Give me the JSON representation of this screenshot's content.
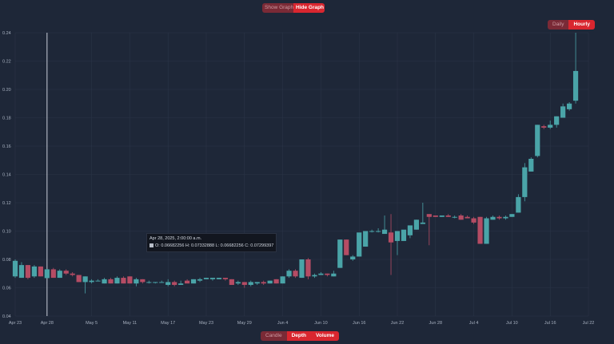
{
  "graph_toggle": {
    "show_label": "Show Graph",
    "hide_label": "Hide Graph",
    "active": "hide"
  },
  "interval_toggle": {
    "daily_label": "Daily",
    "hourly_label": "Hourly",
    "active": "hourly"
  },
  "mode_toggle": {
    "candle_label": "Candle",
    "depth_label": "Depth",
    "volume_label": "Volume"
  },
  "tooltip": {
    "date": "Apr 28, 2025, 2:00:00 a.m.",
    "ohlc": "O: 0.06682256  H: 0.07332888  L: 0.06682256  C: 0.07299397"
  },
  "colors": {
    "background": "#1e2738",
    "up": "#4aa4a8",
    "down": "#b54c64",
    "grid": "#2a3447",
    "accent": "#d9262f"
  },
  "chart_data": {
    "type": "candlestick",
    "ylim": [
      0.04,
      0.24
    ],
    "y_ticks": [
      "0.24",
      "0.22",
      "0.20",
      "0.18",
      "0.16",
      "0.14",
      "0.12",
      "0.10",
      "0.08",
      "0.06",
      "0.04"
    ],
    "y_tick_values": [
      0.24,
      0.22,
      0.2,
      0.18,
      0.16,
      0.14,
      0.12,
      0.1,
      0.08,
      0.06,
      0.04
    ],
    "x_ticks": [
      "Apr 23",
      "Apr 28",
      "May 5",
      "May 11",
      "May 17",
      "May 23",
      "May 29",
      "Jun 4",
      "Jun 10",
      "Jun 16",
      "Jun 22",
      "Jun 28",
      "Jul 4",
      "Jul 10",
      "Jul 16",
      "Jul 22"
    ],
    "x_tick_days": [
      0,
      5,
      12,
      18,
      24,
      30,
      36,
      42,
      48,
      54,
      60,
      66,
      72,
      78,
      84,
      90
    ],
    "day_range": [
      0,
      90
    ],
    "grid": true,
    "crosshair_day": 5,
    "candles": [
      {
        "day": 0,
        "o": 0.068,
        "h": 0.08,
        "l": 0.067,
        "c": 0.079
      },
      {
        "day": 1,
        "o": 0.067,
        "h": 0.078,
        "l": 0.067,
        "c": 0.076
      },
      {
        "day": 2,
        "o": 0.076,
        "h": 0.076,
        "l": 0.066,
        "c": 0.067
      },
      {
        "day": 3,
        "o": 0.068,
        "h": 0.076,
        "l": 0.067,
        "c": 0.075
      },
      {
        "day": 4,
        "o": 0.075,
        "h": 0.075,
        "l": 0.068,
        "c": 0.068
      },
      {
        "day": 5,
        "o": 0.0668,
        "h": 0.0733,
        "l": 0.0668,
        "c": 0.073
      },
      {
        "day": 6,
        "o": 0.073,
        "h": 0.074,
        "l": 0.067,
        "c": 0.067
      },
      {
        "day": 7,
        "o": 0.067,
        "h": 0.073,
        "l": 0.067,
        "c": 0.072
      },
      {
        "day": 8,
        "o": 0.072,
        "h": 0.073,
        "l": 0.069,
        "c": 0.07
      },
      {
        "day": 9,
        "o": 0.07,
        "h": 0.071,
        "l": 0.068,
        "c": 0.069
      },
      {
        "day": 10,
        "o": 0.069,
        "h": 0.069,
        "l": 0.064,
        "c": 0.064
      },
      {
        "day": 11,
        "o": 0.064,
        "h": 0.068,
        "l": 0.056,
        "c": 0.068
      },
      {
        "day": 12,
        "o": 0.064,
        "h": 0.066,
        "l": 0.063,
        "c": 0.065
      },
      {
        "day": 13,
        "o": 0.065,
        "h": 0.066,
        "l": 0.065,
        "c": 0.065
      },
      {
        "day": 14,
        "o": 0.063,
        "h": 0.067,
        "l": 0.063,
        "c": 0.066
      },
      {
        "day": 15,
        "o": 0.066,
        "h": 0.067,
        "l": 0.063,
        "c": 0.063
      },
      {
        "day": 16,
        "o": 0.063,
        "h": 0.068,
        "l": 0.063,
        "c": 0.067
      },
      {
        "day": 17,
        "o": 0.067,
        "h": 0.068,
        "l": 0.063,
        "c": 0.063
      },
      {
        "day": 18,
        "o": 0.068,
        "h": 0.068,
        "l": 0.063,
        "c": 0.063
      },
      {
        "day": 19,
        "o": 0.063,
        "h": 0.067,
        "l": 0.061,
        "c": 0.066
      },
      {
        "day": 20,
        "o": 0.066,
        "h": 0.066,
        "l": 0.063,
        "c": 0.064
      },
      {
        "day": 21,
        "o": 0.064,
        "h": 0.065,
        "l": 0.063,
        "c": 0.064
      },
      {
        "day": 22,
        "o": 0.064,
        "h": 0.064,
        "l": 0.063,
        "c": 0.064
      },
      {
        "day": 23,
        "o": 0.064,
        "h": 0.065,
        "l": 0.064,
        "c": 0.064
      },
      {
        "day": 24,
        "o": 0.062,
        "h": 0.066,
        "l": 0.061,
        "c": 0.064
      },
      {
        "day": 25,
        "o": 0.064,
        "h": 0.065,
        "l": 0.061,
        "c": 0.062
      },
      {
        "day": 26,
        "o": 0.062,
        "h": 0.065,
        "l": 0.062,
        "c": 0.063
      },
      {
        "day": 27,
        "o": 0.065,
        "h": 0.066,
        "l": 0.063,
        "c": 0.063
      },
      {
        "day": 28,
        "o": 0.063,
        "h": 0.066,
        "l": 0.063,
        "c": 0.066
      },
      {
        "day": 29,
        "o": 0.065,
        "h": 0.067,
        "l": 0.064,
        "c": 0.066
      },
      {
        "day": 30,
        "o": 0.066,
        "h": 0.067,
        "l": 0.066,
        "c": 0.067
      },
      {
        "day": 31,
        "o": 0.066,
        "h": 0.067,
        "l": 0.065,
        "c": 0.067
      },
      {
        "day": 32,
        "o": 0.066,
        "h": 0.067,
        "l": 0.066,
        "c": 0.067
      },
      {
        "day": 33,
        "o": 0.067,
        "h": 0.067,
        "l": 0.065,
        "c": 0.066
      },
      {
        "day": 34,
        "o": 0.066,
        "h": 0.066,
        "l": 0.062,
        "c": 0.062
      },
      {
        "day": 35,
        "o": 0.063,
        "h": 0.065,
        "l": 0.062,
        "c": 0.064
      },
      {
        "day": 36,
        "o": 0.064,
        "h": 0.064,
        "l": 0.06,
        "c": 0.062
      },
      {
        "day": 37,
        "o": 0.062,
        "h": 0.065,
        "l": 0.061,
        "c": 0.064
      },
      {
        "day": 38,
        "o": 0.063,
        "h": 0.064,
        "l": 0.062,
        "c": 0.064
      },
      {
        "day": 39,
        "o": 0.064,
        "h": 0.065,
        "l": 0.062,
        "c": 0.063
      },
      {
        "day": 40,
        "o": 0.063,
        "h": 0.065,
        "l": 0.063,
        "c": 0.065
      },
      {
        "day": 41,
        "o": 0.066,
        "h": 0.066,
        "l": 0.063,
        "c": 0.063
      },
      {
        "day": 42,
        "o": 0.063,
        "h": 0.068,
        "l": 0.063,
        "c": 0.068
      },
      {
        "day": 43,
        "o": 0.068,
        "h": 0.073,
        "l": 0.067,
        "c": 0.072
      },
      {
        "day": 44,
        "o": 0.072,
        "h": 0.073,
        "l": 0.067,
        "c": 0.068
      },
      {
        "day": 45,
        "o": 0.067,
        "h": 0.08,
        "l": 0.067,
        "c": 0.08
      },
      {
        "day": 46,
        "o": 0.08,
        "h": 0.081,
        "l": 0.066,
        "c": 0.068
      },
      {
        "day": 47,
        "o": 0.068,
        "h": 0.07,
        "l": 0.067,
        "c": 0.069
      },
      {
        "day": 48,
        "o": 0.069,
        "h": 0.071,
        "l": 0.069,
        "c": 0.07
      },
      {
        "day": 49,
        "o": 0.07,
        "h": 0.07,
        "l": 0.068,
        "c": 0.069
      },
      {
        "day": 50,
        "o": 0.068,
        "h": 0.072,
        "l": 0.068,
        "c": 0.07
      },
      {
        "day": 51,
        "o": 0.074,
        "h": 0.094,
        "l": 0.074,
        "c": 0.094
      },
      {
        "day": 52,
        "o": 0.094,
        "h": 0.094,
        "l": 0.083,
        "c": 0.083
      },
      {
        "day": 53,
        "o": 0.08,
        "h": 0.083,
        "l": 0.079,
        "c": 0.082
      },
      {
        "day": 54,
        "o": 0.082,
        "h": 0.098,
        "l": 0.082,
        "c": 0.099
      },
      {
        "day": 55,
        "o": 0.089,
        "h": 0.1,
        "l": 0.089,
        "c": 0.1
      },
      {
        "day": 56,
        "o": 0.1,
        "h": 0.101,
        "l": 0.099,
        "c": 0.1
      },
      {
        "day": 57,
        "o": 0.1,
        "h": 0.102,
        "l": 0.099,
        "c": 0.1
      },
      {
        "day": 58,
        "o": 0.098,
        "h": 0.111,
        "l": 0.098,
        "c": 0.101
      },
      {
        "day": 59,
        "o": 0.099,
        "h": 0.112,
        "l": 0.069,
        "c": 0.092
      },
      {
        "day": 60,
        "o": 0.093,
        "h": 0.1,
        "l": 0.083,
        "c": 0.1
      },
      {
        "day": 61,
        "o": 0.093,
        "h": 0.1,
        "l": 0.093,
        "c": 0.101
      },
      {
        "day": 62,
        "o": 0.097,
        "h": 0.103,
        "l": 0.095,
        "c": 0.104
      },
      {
        "day": 63,
        "o": 0.101,
        "h": 0.108,
        "l": 0.101,
        "c": 0.108
      },
      {
        "day": 64,
        "o": 0.105,
        "h": 0.12,
        "l": 0.105,
        "c": 0.106
      },
      {
        "day": 65,
        "o": 0.112,
        "h": 0.112,
        "l": 0.09,
        "c": 0.11
      },
      {
        "day": 66,
        "o": 0.111,
        "h": 0.111,
        "l": 0.11,
        "c": 0.11
      },
      {
        "day": 67,
        "o": 0.11,
        "h": 0.111,
        "l": 0.11,
        "c": 0.111
      },
      {
        "day": 68,
        "o": 0.111,
        "h": 0.112,
        "l": 0.11,
        "c": 0.11
      },
      {
        "day": 69,
        "o": 0.11,
        "h": 0.111,
        "l": 0.109,
        "c": 0.11
      },
      {
        "day": 70,
        "o": 0.111,
        "h": 0.112,
        "l": 0.108,
        "c": 0.108
      },
      {
        "day": 71,
        "o": 0.11,
        "h": 0.111,
        "l": 0.109,
        "c": 0.109
      },
      {
        "day": 72,
        "o": 0.109,
        "h": 0.11,
        "l": 0.105,
        "c": 0.106
      },
      {
        "day": 73,
        "o": 0.11,
        "h": 0.11,
        "l": 0.091,
        "c": 0.091
      },
      {
        "day": 74,
        "o": 0.091,
        "h": 0.11,
        "l": 0.091,
        "c": 0.109
      },
      {
        "day": 75,
        "o": 0.108,
        "h": 0.111,
        "l": 0.108,
        "c": 0.11
      },
      {
        "day": 76,
        "o": 0.11,
        "h": 0.111,
        "l": 0.108,
        "c": 0.109
      },
      {
        "day": 77,
        "o": 0.109,
        "h": 0.111,
        "l": 0.108,
        "c": 0.11
      },
      {
        "day": 78,
        "o": 0.11,
        "h": 0.112,
        "l": 0.11,
        "c": 0.112
      },
      {
        "day": 79,
        "o": 0.113,
        "h": 0.126,
        "l": 0.113,
        "c": 0.124
      },
      {
        "day": 80,
        "o": 0.124,
        "h": 0.148,
        "l": 0.121,
        "c": 0.145
      },
      {
        "day": 81,
        "o": 0.142,
        "h": 0.152,
        "l": 0.142,
        "c": 0.151
      },
      {
        "day": 82,
        "o": 0.153,
        "h": 0.175,
        "l": 0.152,
        "c": 0.175
      },
      {
        "day": 83,
        "o": 0.174,
        "h": 0.175,
        "l": 0.172,
        "c": 0.173
      },
      {
        "day": 84,
        "o": 0.173,
        "h": 0.178,
        "l": 0.172,
        "c": 0.175
      },
      {
        "day": 85,
        "o": 0.175,
        "h": 0.181,
        "l": 0.173,
        "c": 0.181
      },
      {
        "day": 86,
        "o": 0.18,
        "h": 0.19,
        "l": 0.18,
        "c": 0.188
      },
      {
        "day": 87,
        "o": 0.186,
        "h": 0.191,
        "l": 0.185,
        "c": 0.19
      },
      {
        "day": 88,
        "o": 0.192,
        "h": 0.24,
        "l": 0.19,
        "c": 0.213
      }
    ]
  }
}
